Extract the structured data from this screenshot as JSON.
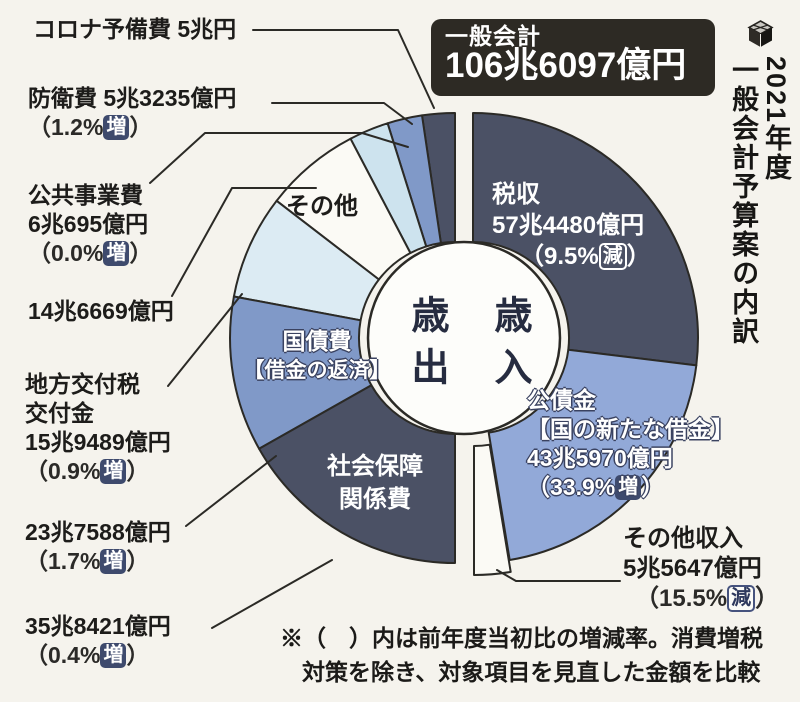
{
  "title_box": {
    "line1": "一般会計",
    "line2": "106兆6097億円"
  },
  "side_title": "2021年度\n一般会計予算案の内訳",
  "footnote": {
    "line1": "※（　）内は前年度当初比の増減率。消費増税",
    "line2": "対策を除き、対象項目を見直した金額を比較"
  },
  "colors": {
    "background": "#f5f3ed",
    "dark_navy_slice": "#4b5165",
    "medium_blue_slice": "#8099c8",
    "light_blue_slice": "#cde3ee",
    "pale_blue_slice": "#dcebf3",
    "kousaikin_blue_slice": "#92a9d8",
    "white_slice": "#fbfaf5",
    "badge_navy": "#3e4a6d",
    "title_box_bg": "#2d2a24",
    "outline": "#2b2a26"
  },
  "chart_data": {
    "type": "pie",
    "title": "2021年度一般会計予算案の内訳",
    "legend_position": "none",
    "grid": false,
    "total": {
      "label": "一般会計",
      "value_oku": 1066097,
      "display": "106兆6097億円"
    },
    "halves": [
      {
        "name": "歳入",
        "side": "right",
        "items": [
          {
            "label": "税収",
            "value_oku": 574480,
            "display": "57兆4480億円",
            "change_prefix": "（9.5%",
            "change_dir": "減",
            "change_suffix": "）",
            "color": "#4b5165",
            "exploded": false
          },
          {
            "label": "公債金",
            "sublabel": "【国の新たな借金】",
            "value_oku": 435970,
            "display": "43兆5970億円",
            "change_prefix": "（33.9%",
            "change_dir": "増",
            "change_suffix": "）",
            "color": "#92a9d8",
            "exploded": false
          },
          {
            "label": "その他収入",
            "value_oku": 55647,
            "display": "5兆5647億円",
            "change_prefix": "（15.5%",
            "change_dir": "減",
            "change_suffix": "）",
            "color": "#fbfaf5",
            "exploded": true
          }
        ]
      },
      {
        "name": "歳出",
        "side": "left",
        "items": [
          {
            "label": "コロナ予備費",
            "value_oku": 50000,
            "display": "5兆円",
            "change_prefix": "",
            "change_dir": "",
            "change_suffix": "",
            "color": "#4b5165",
            "exploded": false
          },
          {
            "label": "防衛費",
            "value_oku": 53235,
            "display": "5兆3235億円",
            "change_prefix": "（1.2%",
            "change_dir": "増",
            "change_suffix": "）",
            "color": "#8099c8",
            "exploded": false
          },
          {
            "label": "公共事業費",
            "value_oku": 60695,
            "display": "6兆695億円",
            "change_prefix": "（0.0%",
            "change_dir": "増",
            "change_suffix": "）",
            "color": "#cde3ee",
            "exploded": false
          },
          {
            "label": "その他",
            "value_oku": 146669,
            "display": "14兆6669億円",
            "change_prefix": "",
            "change_dir": "",
            "change_suffix": "",
            "color": "#fbfaf5",
            "exploded": false
          },
          {
            "label": "地方交付税交付金",
            "value_oku": 159489,
            "display": "15兆9489億円",
            "change_prefix": "（0.9%",
            "change_dir": "増",
            "change_suffix": "）",
            "color": "#dcebf3",
            "exploded": false
          },
          {
            "label": "国債費",
            "sublabel": "【借金の返済】",
            "value_oku": 237588,
            "display": "23兆7588億円",
            "change_prefix": "（1.7%",
            "change_dir": "増",
            "change_suffix": "）",
            "color": "#8099c8",
            "exploded": false
          },
          {
            "label": "社会保障関係費",
            "value_oku": 358421,
            "display": "35兆8421億円",
            "change_prefix": "（0.4%",
            "change_dir": "増",
            "change_suffix": "）",
            "color": "#4b5165",
            "exploded": false
          }
        ]
      }
    ]
  }
}
